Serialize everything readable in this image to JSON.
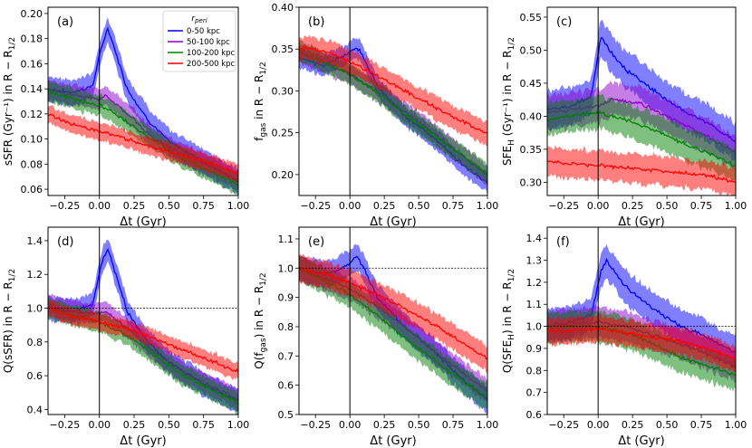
{
  "figure": {
    "xlabel": "Δt (Gyr)",
    "legend": {
      "title": "r_peri",
      "entries": [
        {
          "label": "0-50 kpc",
          "color": "#0000ff"
        },
        {
          "label": "50-100 kpc",
          "color": "#8b00cc"
        },
        {
          "label": "100-200 kpc",
          "color": "#008000"
        },
        {
          "label": "200-500 kpc",
          "color": "#ff0000"
        }
      ]
    }
  },
  "chart_data": [
    {
      "id": "a",
      "type": "line",
      "panel_label": "(a)",
      "ylabel": "sSFR (Gyr⁻¹) in R − R1/2",
      "xlim": [
        -0.37,
        1.0
      ],
      "ylim": [
        0.055,
        0.205
      ],
      "xticks": [
        -0.25,
        0.0,
        0.25,
        0.5,
        0.75,
        1.0
      ],
      "xtick_labels": [
        "−0.25",
        "0.00",
        "0.25",
        "0.50",
        "0.75",
        "1.00"
      ],
      "yticks": [
        0.06,
        0.08,
        0.1,
        0.12,
        0.14,
        0.16,
        0.18,
        0.2
      ],
      "ytick_labels": [
        "0.06",
        "0.08",
        "0.10",
        "0.12",
        "0.14",
        "0.16",
        "0.18",
        "0.20"
      ],
      "vline": 0.0,
      "hline": null,
      "series": [
        {
          "name": "0-50 kpc",
          "color": "#0000ff",
          "band": 0.01,
          "x": [
            -0.37,
            -0.2,
            -0.05,
            0.02,
            0.06,
            0.1,
            0.2,
            0.35,
            0.5,
            0.7,
            1.0
          ],
          "y": [
            0.14,
            0.137,
            0.142,
            0.175,
            0.188,
            0.175,
            0.14,
            0.115,
            0.098,
            0.085,
            0.066
          ]
        },
        {
          "name": "50-100 kpc",
          "color": "#8b00cc",
          "band": 0.008,
          "x": [
            -0.37,
            -0.2,
            0.0,
            0.05,
            0.2,
            0.4,
            0.6,
            0.8,
            1.0
          ],
          "y": [
            0.14,
            0.135,
            0.132,
            0.134,
            0.12,
            0.1,
            0.088,
            0.078,
            0.067
          ]
        },
        {
          "name": "100-200 kpc",
          "color": "#008000",
          "band": 0.008,
          "x": [
            -0.37,
            -0.2,
            0.0,
            0.2,
            0.4,
            0.6,
            0.8,
            1.0
          ],
          "y": [
            0.138,
            0.132,
            0.127,
            0.114,
            0.098,
            0.085,
            0.074,
            0.064
          ]
        },
        {
          "name": "200-500 kpc",
          "color": "#ff0000",
          "band": 0.007,
          "x": [
            -0.37,
            -0.2,
            0.0,
            0.2,
            0.4,
            0.6,
            0.8,
            1.0
          ],
          "y": [
            0.12,
            0.112,
            0.106,
            0.1,
            0.093,
            0.087,
            0.08,
            0.073
          ]
        }
      ]
    },
    {
      "id": "b",
      "type": "line",
      "panel_label": "(b)",
      "ylabel": "fgas in R − R1/2",
      "xlim": [
        -0.37,
        1.0
      ],
      "ylim": [
        0.175,
        0.4
      ],
      "xticks": [
        -0.25,
        0.0,
        0.25,
        0.5,
        0.75,
        1.0
      ],
      "xtick_labels": [
        "−0.25",
        "0.00",
        "0.25",
        "0.50",
        "0.75",
        "1.00"
      ],
      "yticks": [
        0.2,
        0.25,
        0.3,
        0.35,
        0.4
      ],
      "ytick_labels": [
        "0.20",
        "0.25",
        "0.30",
        "0.35",
        "0.40"
      ],
      "vline": 0.0,
      "hline": null,
      "series": [
        {
          "name": "0-50 kpc",
          "color": "#0000ff",
          "band": 0.012,
          "x": [
            -0.37,
            -0.2,
            -0.05,
            0.05,
            0.1,
            0.2,
            0.4,
            0.6,
            0.8,
            1.0
          ],
          "y": [
            0.34,
            0.33,
            0.342,
            0.352,
            0.34,
            0.305,
            0.27,
            0.245,
            0.215,
            0.19
          ]
        },
        {
          "name": "50-100 kpc",
          "color": "#8b00cc",
          "band": 0.012,
          "x": [
            -0.37,
            -0.2,
            0.0,
            0.2,
            0.4,
            0.6,
            0.8,
            1.0
          ],
          "y": [
            0.345,
            0.335,
            0.32,
            0.3,
            0.275,
            0.25,
            0.225,
            0.198
          ]
        },
        {
          "name": "100-200 kpc",
          "color": "#008000",
          "band": 0.012,
          "x": [
            -0.37,
            -0.2,
            0.0,
            0.2,
            0.4,
            0.6,
            0.8,
            1.0
          ],
          "y": [
            0.348,
            0.335,
            0.32,
            0.298,
            0.272,
            0.248,
            0.225,
            0.2
          ]
        },
        {
          "name": "200-500 kpc",
          "color": "#ff0000",
          "band": 0.014,
          "x": [
            -0.37,
            -0.2,
            0.0,
            0.2,
            0.4,
            0.6,
            0.8,
            1.0
          ],
          "y": [
            0.352,
            0.348,
            0.335,
            0.318,
            0.3,
            0.282,
            0.265,
            0.248
          ]
        }
      ]
    },
    {
      "id": "c",
      "type": "line",
      "panel_label": "(c)",
      "ylabel": "SFE_H (Gyr⁻¹) in R − R1/2",
      "xlim": [
        -0.37,
        1.0
      ],
      "ylim": [
        0.28,
        0.565
      ],
      "xticks": [
        -0.25,
        0.0,
        0.25,
        0.5,
        0.75,
        1.0
      ],
      "xtick_labels": [
        "−0.25",
        "0.00",
        "0.25",
        "0.50",
        "0.75",
        "1.00"
      ],
      "yticks": [
        0.3,
        0.35,
        0.4,
        0.45,
        0.5,
        0.55
      ],
      "ytick_labels": [
        "0.30",
        "0.35",
        "0.40",
        "0.45",
        "0.50",
        "0.55"
      ],
      "vline": 0.0,
      "hline": null,
      "series": [
        {
          "name": "0-50 kpc",
          "color": "#0000ff",
          "band": 0.028,
          "x": [
            -0.37,
            -0.2,
            -0.05,
            0.02,
            0.08,
            0.2,
            0.4,
            0.6,
            0.8,
            1.0
          ],
          "y": [
            0.41,
            0.415,
            0.43,
            0.52,
            0.5,
            0.47,
            0.44,
            0.41,
            0.39,
            0.36
          ]
        },
        {
          "name": "50-100 kpc",
          "color": "#8b00cc",
          "band": 0.025,
          "x": [
            -0.37,
            -0.2,
            0.0,
            0.1,
            0.3,
            0.5,
            0.7,
            1.0
          ],
          "y": [
            0.405,
            0.41,
            0.415,
            0.425,
            0.42,
            0.4,
            0.38,
            0.345
          ]
        },
        {
          "name": "100-200 kpc",
          "color": "#008000",
          "band": 0.025,
          "x": [
            -0.37,
            -0.2,
            0.0,
            0.2,
            0.4,
            0.6,
            0.8,
            1.0
          ],
          "y": [
            0.395,
            0.4,
            0.405,
            0.395,
            0.38,
            0.36,
            0.345,
            0.325
          ]
        },
        {
          "name": "200-500 kpc",
          "color": "#ff0000",
          "band": 0.022,
          "x": [
            -0.37,
            -0.2,
            0.0,
            0.2,
            0.4,
            0.6,
            0.8,
            1.0
          ],
          "y": [
            0.332,
            0.328,
            0.325,
            0.322,
            0.318,
            0.315,
            0.31,
            0.3
          ]
        }
      ]
    },
    {
      "id": "d",
      "type": "line",
      "panel_label": "(d)",
      "ylabel": "Q(sSFR) in R − R1/2",
      "xlim": [
        -0.37,
        1.0
      ],
      "ylim": [
        0.37,
        1.48
      ],
      "xticks": [
        -0.25,
        0.0,
        0.25,
        0.5,
        0.75,
        1.0
      ],
      "xtick_labels": [
        "−0.25",
        "0.00",
        "0.25",
        "0.50",
        "0.75",
        "1.00"
      ],
      "yticks": [
        0.4,
        0.6,
        0.8,
        1.0,
        1.2,
        1.4
      ],
      "ytick_labels": [
        "0.4",
        "0.6",
        "0.8",
        "1.0",
        "1.2",
        "1.4"
      ],
      "vline": 0.0,
      "hline": 1.0,
      "series": [
        {
          "name": "0-50 kpc",
          "color": "#0000ff",
          "band": 0.07,
          "x": [
            -0.37,
            -0.2,
            -0.05,
            0.02,
            0.06,
            0.1,
            0.2,
            0.35,
            0.5,
            0.75,
            1.0
          ],
          "y": [
            1.0,
            0.98,
            1.02,
            1.28,
            1.35,
            1.25,
            0.98,
            0.8,
            0.68,
            0.55,
            0.45
          ]
        },
        {
          "name": "50-100 kpc",
          "color": "#8b00cc",
          "band": 0.06,
          "x": [
            -0.37,
            -0.2,
            0.0,
            0.05,
            0.2,
            0.4,
            0.6,
            0.8,
            1.0
          ],
          "y": [
            1.02,
            0.98,
            0.97,
            0.98,
            0.88,
            0.74,
            0.62,
            0.54,
            0.46
          ]
        },
        {
          "name": "100-200 kpc",
          "color": "#008000",
          "band": 0.06,
          "x": [
            -0.37,
            -0.2,
            0.0,
            0.2,
            0.4,
            0.6,
            0.8,
            1.0
          ],
          "y": [
            1.0,
            0.96,
            0.92,
            0.84,
            0.72,
            0.6,
            0.52,
            0.44
          ]
        },
        {
          "name": "200-500 kpc",
          "color": "#ff0000",
          "band": 0.05,
          "x": [
            -0.37,
            -0.2,
            0.0,
            0.2,
            0.4,
            0.6,
            0.8,
            1.0
          ],
          "y": [
            1.0,
            0.95,
            0.92,
            0.88,
            0.82,
            0.75,
            0.69,
            0.62
          ]
        }
      ]
    },
    {
      "id": "e",
      "type": "line",
      "panel_label": "(e)",
      "ylabel": "Q(fgas) in R − R1/2",
      "xlim": [
        -0.37,
        1.0
      ],
      "ylim": [
        0.5,
        1.14
      ],
      "xticks": [
        -0.25,
        0.0,
        0.25,
        0.5,
        0.75,
        1.0
      ],
      "xtick_labels": [
        "−0.25",
        "0.00",
        "0.25",
        "0.50",
        "0.75",
        "1.00"
      ],
      "yticks": [
        0.5,
        0.6,
        0.7,
        0.8,
        0.9,
        1.0,
        1.1
      ],
      "ytick_labels": [
        "0.5",
        "0.6",
        "0.7",
        "0.8",
        "0.9",
        "1.0",
        "1.1"
      ],
      "vline": 0.0,
      "hline": 1.0,
      "series": [
        {
          "name": "0-50 kpc",
          "color": "#0000ff",
          "band": 0.045,
          "x": [
            -0.37,
            -0.2,
            -0.05,
            0.05,
            0.1,
            0.2,
            0.4,
            0.6,
            0.8,
            1.0
          ],
          "y": [
            1.0,
            0.98,
            1.0,
            1.04,
            1.0,
            0.9,
            0.8,
            0.72,
            0.63,
            0.55
          ]
        },
        {
          "name": "50-100 kpc",
          "color": "#8b00cc",
          "band": 0.04,
          "x": [
            -0.37,
            -0.2,
            0.0,
            0.2,
            0.4,
            0.6,
            0.8,
            1.0
          ],
          "y": [
            1.0,
            0.97,
            0.93,
            0.87,
            0.8,
            0.72,
            0.65,
            0.58
          ]
        },
        {
          "name": "100-200 kpc",
          "color": "#008000",
          "band": 0.045,
          "x": [
            -0.37,
            -0.2,
            0.0,
            0.2,
            0.4,
            0.6,
            0.8,
            1.0
          ],
          "y": [
            1.0,
            0.96,
            0.91,
            0.84,
            0.76,
            0.69,
            0.62,
            0.56
          ]
        },
        {
          "name": "200-500 kpc",
          "color": "#ff0000",
          "band": 0.045,
          "x": [
            -0.37,
            -0.2,
            0.0,
            0.2,
            0.4,
            0.6,
            0.8,
            1.0
          ],
          "y": [
            1.0,
            0.98,
            0.95,
            0.91,
            0.86,
            0.81,
            0.75,
            0.69
          ]
        }
      ]
    },
    {
      "id": "f",
      "type": "line",
      "panel_label": "(f)",
      "ylabel": "Q(SFE_H) in R − R1/2",
      "xlim": [
        -0.37,
        1.0
      ],
      "ylim": [
        0.6,
        1.45
      ],
      "xticks": [
        -0.25,
        0.0,
        0.25,
        0.5,
        0.75,
        1.0
      ],
      "xtick_labels": [
        "−0.25",
        "0.00",
        "0.25",
        "0.50",
        "0.75",
        "1.00"
      ],
      "yticks": [
        0.6,
        0.7,
        0.8,
        0.9,
        1.0,
        1.1,
        1.2,
        1.3,
        1.4
      ],
      "ytick_labels": [
        "0.6",
        "0.7",
        "0.8",
        "0.9",
        "1.0",
        "1.1",
        "1.2",
        "1.3",
        "1.4"
      ],
      "vline": 0.0,
      "hline": 1.0,
      "series": [
        {
          "name": "0-50 kpc",
          "color": "#0000ff",
          "band": 0.075,
          "x": [
            -0.37,
            -0.2,
            -0.05,
            0.02,
            0.06,
            0.2,
            0.4,
            0.6,
            0.8,
            1.0
          ],
          "y": [
            1.0,
            1.02,
            1.05,
            1.25,
            1.3,
            1.18,
            1.08,
            1.0,
            0.95,
            0.88
          ]
        },
        {
          "name": "50-100 kpc",
          "color": "#8b00cc",
          "band": 0.07,
          "x": [
            -0.37,
            -0.2,
            0.0,
            0.2,
            0.4,
            0.6,
            0.8,
            1.0
          ],
          "y": [
            1.0,
            1.01,
            1.02,
            1.0,
            0.96,
            0.92,
            0.87,
            0.82
          ]
        },
        {
          "name": "100-200 kpc",
          "color": "#008000",
          "band": 0.07,
          "x": [
            -0.37,
            -0.2,
            0.0,
            0.2,
            0.4,
            0.6,
            0.8,
            1.0
          ],
          "y": [
            0.99,
            1.0,
            1.0,
            0.97,
            0.92,
            0.86,
            0.82,
            0.78
          ]
        },
        {
          "name": "200-500 kpc",
          "color": "#ff0000",
          "band": 0.06,
          "x": [
            -0.37,
            -0.2,
            0.0,
            0.2,
            0.4,
            0.6,
            0.8,
            1.0
          ],
          "y": [
            0.98,
            0.98,
            0.99,
            0.97,
            0.95,
            0.93,
            0.9,
            0.85
          ]
        }
      ]
    }
  ]
}
